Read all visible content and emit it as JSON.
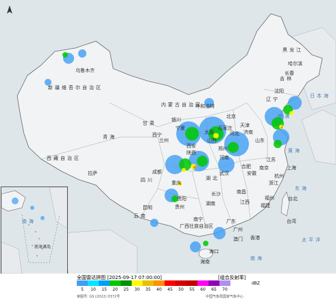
{
  "map": {
    "region_labels": {
      "xinjiang": "新疆维吾尔自治区",
      "xizang": "西藏自治区",
      "qinghai": "青海",
      "gansu": "甘肃",
      "neimenggu": "内蒙古自治区",
      "heilongjiang": "黑龙江",
      "jilin": "吉林",
      "liaoning": "辽宁",
      "beijing": "北京",
      "tianjin": "天津",
      "hebei": "河北",
      "shanxi": "山西",
      "shandong": "山东",
      "henan": "河南",
      "shaanxi": "陕西",
      "ningxia": "宁夏",
      "sichuan": "四川",
      "chongqing": "重庆",
      "hubei": "湖北",
      "anhui": "安徽",
      "jiangsu": "江苏",
      "shanghai": "上海",
      "zhejiang": "浙江",
      "hunan": "湖南",
      "jiangxi": "江西",
      "fujian": "福建",
      "taiwan": "台湾",
      "guizhou": "贵州",
      "yunnan": "云南",
      "guangxi": "广西壮族自治区",
      "guangdong": "广东",
      "hainan": "海南"
    },
    "city_labels": {
      "urumqi": "乌鲁木齐",
      "lhasa": "拉萨",
      "xining": "西宁",
      "lanzhou": "兰州",
      "yinchuan": "银川",
      "hohhot": "呼和浩特",
      "harbin": "哈尔滨",
      "changchun": "长春",
      "shenyang": "沈阳",
      "shijiazhuang": "石家庄",
      "taiyuan": "太原",
      "jinan": "济南",
      "zhengzhou": "郑州",
      "xian": "西安",
      "chengdu": "成都",
      "wuhan": "武汉",
      "hefei": "合肥",
      "nanjing": "南京",
      "hangzhou": "杭州",
      "changsha": "长沙",
      "nanchang": "南昌",
      "fuzhou": "福州",
      "taipei": "台北",
      "guiyang": "贵阳",
      "kunming": "昆明",
      "nanning": "南宁",
      "guangzhou": "广州",
      "hongkong": "香港",
      "macau": "澳门",
      "haikou": "海口"
    },
    "sea_labels": {
      "bohai": "渤海",
      "yellow_sea": "黄海",
      "east_sea": "东海",
      "south_sea": "南海",
      "pacific": "太平洋",
      "japan_sea": "日本海"
    },
    "inset_labels": {
      "south_sea": "南海",
      "islands": "南海诸岛"
    }
  },
  "legend": {
    "title": "全国雷达拼图 [2025-09-17 07:00:00]",
    "subtitle": "[组合反射率]",
    "unit": "dBZ",
    "ticks": [
      "5",
      "10",
      "15",
      "20",
      "25",
      "30",
      "35",
      "40",
      "45",
      "50",
      "55",
      "60",
      "65",
      "70"
    ],
    "colors": [
      "#3f9ff5",
      "#00e5ff",
      "#01a0f6",
      "#00c800",
      "#009000",
      "#fffa00",
      "#e7c000",
      "#ff9000",
      "#ff0000",
      "#d60000",
      "#c00000",
      "#ff00f0",
      "#9600b4",
      "#ad90f0"
    ],
    "note": "审图号: GS (2022) 0372号",
    "source": "中国气象局国家气象中心"
  }
}
